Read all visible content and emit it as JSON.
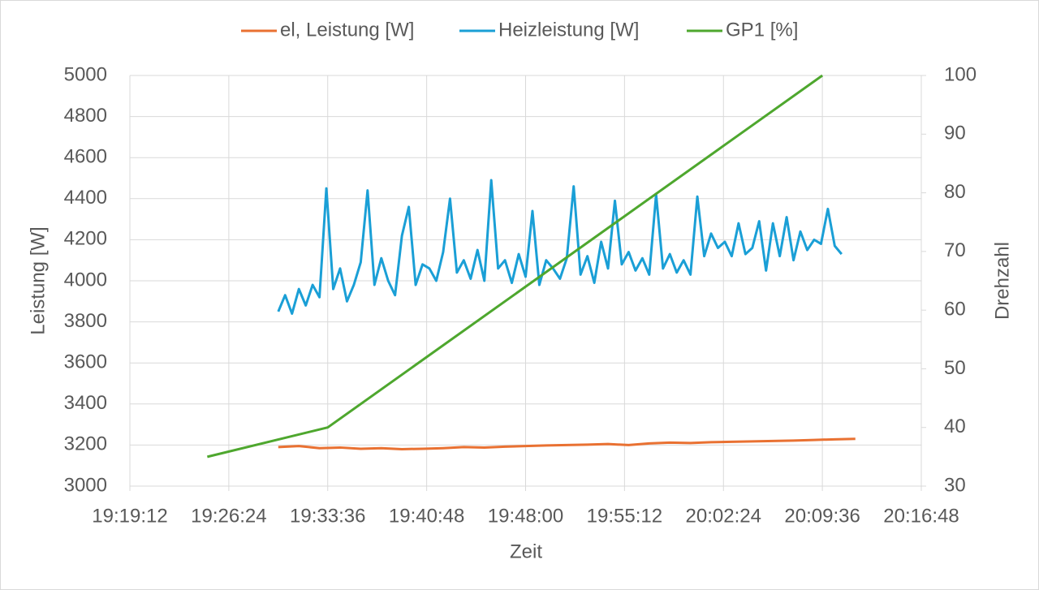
{
  "chart_data": {
    "type": "line",
    "x_label": "Zeit",
    "y_label": "Leistung [W]",
    "y2_label": "Drehzahl",
    "xlim": [
      69552,
      73008
    ],
    "xticks": [
      {
        "value": 69552,
        "label": "19:19:12"
      },
      {
        "value": 69984,
        "label": "19:26:24"
      },
      {
        "value": 70416,
        "label": "19:33:36"
      },
      {
        "value": 70848,
        "label": "19:40:48"
      },
      {
        "value": 71280,
        "label": "19:48:00"
      },
      {
        "value": 71712,
        "label": "19:55:12"
      },
      {
        "value": 72144,
        "label": "20:02:24"
      },
      {
        "value": 72576,
        "label": "20:09:36"
      },
      {
        "value": 73008,
        "label": "20:16:48"
      }
    ],
    "ylim": [
      3000,
      5000
    ],
    "yticks": [
      3000,
      3200,
      3400,
      3600,
      3800,
      4000,
      4200,
      4400,
      4600,
      4800,
      5000
    ],
    "y2lim": [
      30,
      100
    ],
    "y2ticks": [
      30,
      40,
      50,
      60,
      70,
      80,
      90,
      100
    ],
    "grid": true,
    "legend": "top",
    "series": [
      {
        "name": "el, Leistung [W]",
        "color": "#e97132",
        "x": [
          70200,
          70290,
          70380,
          70470,
          70560,
          70650,
          70740,
          70830,
          70920,
          71010,
          71100,
          71190,
          71280,
          71370,
          71460,
          71550,
          71640,
          71730,
          71820,
          71910,
          72000,
          72090,
          72180,
          72270,
          72360,
          72450,
          72540,
          72630,
          72720
        ],
        "values": [
          3190,
          3195,
          3185,
          3188,
          3182,
          3185,
          3180,
          3182,
          3185,
          3190,
          3188,
          3192,
          3195,
          3198,
          3200,
          3202,
          3205,
          3200,
          3208,
          3212,
          3210,
          3214,
          3216,
          3218,
          3220,
          3222,
          3225,
          3228,
          3230
        ]
      },
      {
        "name": "Heizleistung [W]",
        "color": "#1a9fd6",
        "x": [
          70200,
          70230,
          70260,
          70290,
          70320,
          70350,
          70380,
          70410,
          70440,
          70470,
          70500,
          70530,
          70560,
          70590,
          70620,
          70650,
          70680,
          70710,
          70740,
          70770,
          70800,
          70830,
          70860,
          70890,
          70920,
          70950,
          70980,
          71010,
          71040,
          71070,
          71100,
          71130,
          71160,
          71190,
          71220,
          71250,
          71280,
          71310,
          71340,
          71370,
          71400,
          71430,
          71460,
          71490,
          71520,
          71550,
          71580,
          71610,
          71640,
          71670,
          71700,
          71730,
          71760,
          71790,
          71820,
          71850,
          71880,
          71910,
          71940,
          71970,
          72000,
          72030,
          72060,
          72090,
          72120,
          72150,
          72180,
          72210,
          72240,
          72270,
          72300,
          72330,
          72360,
          72390,
          72420,
          72450,
          72480,
          72510,
          72540,
          72570,
          72600,
          72630,
          72660
        ],
        "values": [
          3850,
          3930,
          3840,
          3960,
          3880,
          3980,
          3920,
          4450,
          3960,
          4060,
          3900,
          3980,
          4090,
          4440,
          3980,
          4110,
          4000,
          3930,
          4220,
          4360,
          3980,
          4080,
          4060,
          4000,
          4140,
          4400,
          4040,
          4100,
          4010,
          4150,
          4000,
          4490,
          4060,
          4100,
          3990,
          4130,
          4020,
          4340,
          3980,
          4100,
          4060,
          4010,
          4110,
          4460,
          4030,
          4120,
          3990,
          4190,
          4060,
          4390,
          4080,
          4140,
          4050,
          4110,
          4030,
          4420,
          4060,
          4130,
          4040,
          4100,
          4030,
          4410,
          4120,
          4230,
          4160,
          4190,
          4120,
          4280,
          4130,
          4160,
          4290,
          4050,
          4280,
          4120,
          4310,
          4100,
          4240,
          4150,
          4200,
          4180,
          4350,
          4170,
          4130
        ]
      },
      {
        "name": "GP1 [%]",
        "color": "#4ea72e",
        "axis": "y2",
        "x": [
          69890,
          70416,
          72576
        ],
        "values": [
          35,
          40,
          100
        ]
      }
    ]
  }
}
